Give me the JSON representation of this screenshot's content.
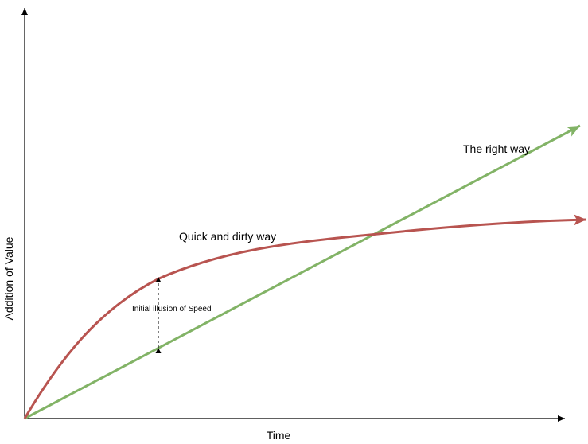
{
  "axes": {
    "x_label": "Time",
    "y_label": "Addition of Value"
  },
  "curves": {
    "quick": {
      "label": "Quick and dirty way",
      "color": "#b85450"
    },
    "right": {
      "label": "The right way",
      "color": "#82b366"
    }
  },
  "annotation": {
    "label": "Initial illusion of Speed"
  },
  "colors": {
    "axis": "#000000",
    "background": "#ffffff"
  }
}
